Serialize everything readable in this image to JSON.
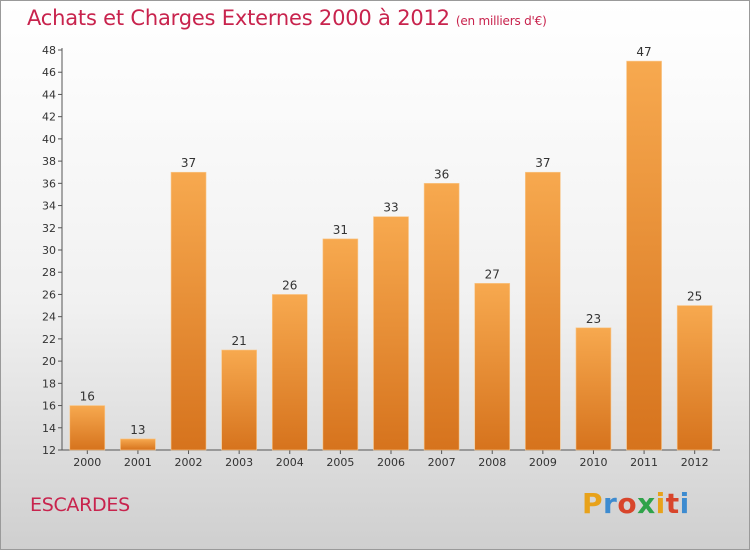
{
  "title": "Achats et Charges Externes 2000 à 2012",
  "unit": "(en milliers d'€)",
  "town": "ESCARDES",
  "logo": {
    "letters": [
      "P",
      "r",
      "o",
      "x",
      "i",
      "t",
      "i"
    ],
    "colors": [
      "#e8a21a",
      "#3d8bd0",
      "#d8452b",
      "#2fa34a",
      "#e8a21a",
      "#d8452b",
      "#3d8bd0"
    ]
  },
  "colors": {
    "bar_light": "#f7a94f",
    "bar_dark": "#d6731d",
    "title": "#c8234d"
  },
  "chart_data": {
    "type": "bar",
    "categories": [
      "2000",
      "2001",
      "2002",
      "2003",
      "2004",
      "2005",
      "2006",
      "2007",
      "2008",
      "2009",
      "2010",
      "2011",
      "2012"
    ],
    "values": [
      16,
      13,
      37,
      21,
      26,
      31,
      33,
      36,
      27,
      37,
      23,
      47,
      25
    ],
    "ylim": [
      12,
      48
    ],
    "yticks": [
      12,
      14,
      16,
      18,
      20,
      22,
      24,
      26,
      28,
      30,
      32,
      34,
      36,
      38,
      40,
      42,
      44,
      46,
      48
    ],
    "grid": false,
    "data_labels": true
  }
}
